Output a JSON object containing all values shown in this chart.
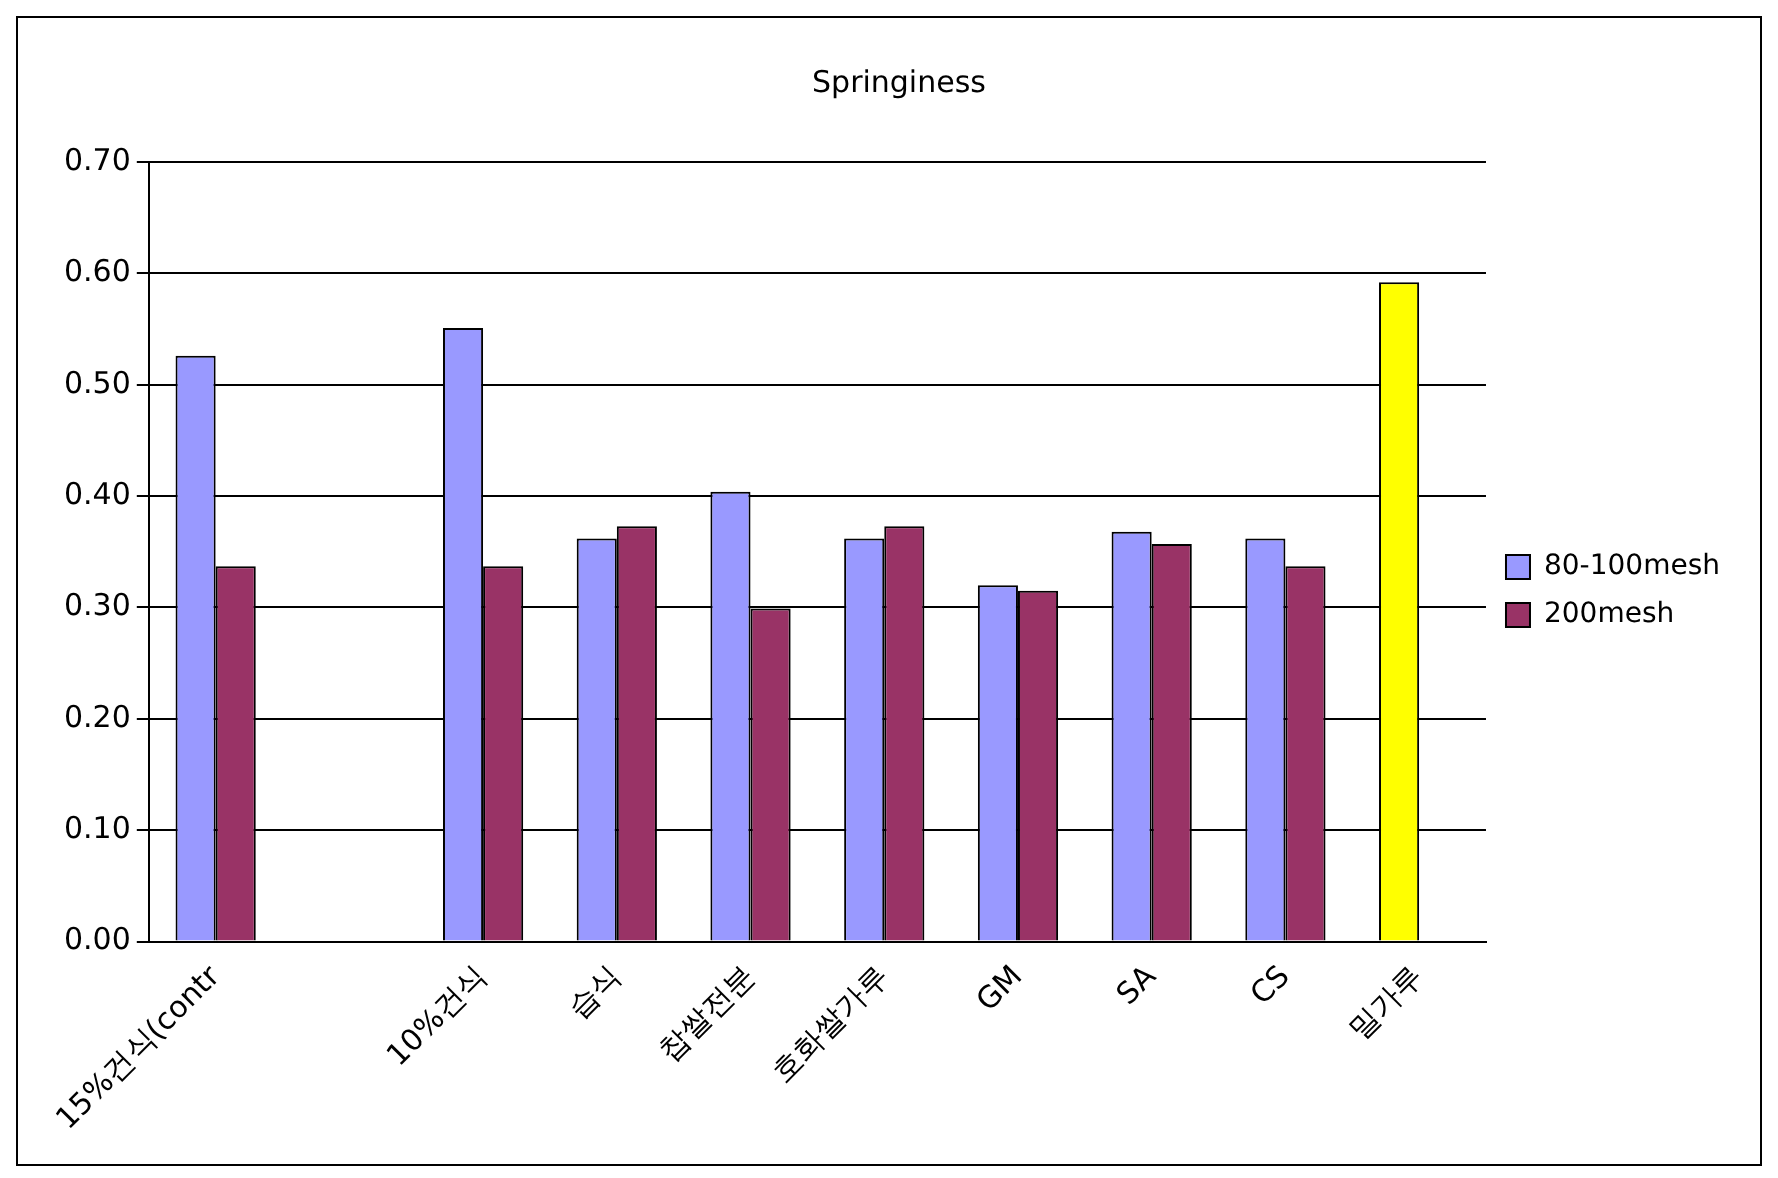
{
  "chart_data": {
    "type": "bar",
    "title": "Springiness",
    "categories": [
      "15%건식(contr",
      null,
      "10%건식",
      "습식",
      "찹쌀전분",
      "호화쌀가루",
      "GM",
      "SA",
      "CS",
      "밀가루"
    ],
    "series": [
      {
        "name": "80-100mesh",
        "color": "#9999ff",
        "colors": [
          "#9999ff",
          "#9999ff",
          "#9999ff",
          "#9999ff",
          "#9999ff",
          "#9999ff",
          "#9999ff",
          "#9999ff",
          "#9999ff",
          "#ffff00"
        ],
        "values": [
          0.526,
          null,
          0.551,
          0.362,
          0.404,
          0.362,
          0.32,
          0.368,
          0.362,
          0.592
        ]
      },
      {
        "name": "200mesh",
        "color": "#993366",
        "values": [
          0.337,
          null,
          0.337,
          0.373,
          0.299,
          0.373,
          0.315,
          0.357,
          0.337,
          null
        ]
      }
    ],
    "ylim": [
      0,
      0.7
    ],
    "yticks": [
      {
        "value": 0,
        "label": "0.00"
      },
      {
        "value": 0.1,
        "label": "0.10"
      },
      {
        "value": 0.2,
        "label": "0.20"
      },
      {
        "value": 0.3,
        "label": "0.30"
      },
      {
        "value": 0.4,
        "label": "0.40"
      },
      {
        "value": 0.5,
        "label": "0.50"
      },
      {
        "value": 0.6,
        "label": "0.60"
      },
      {
        "value": 0.7,
        "label": "0.70"
      }
    ],
    "grid": "y",
    "legend": "right"
  }
}
